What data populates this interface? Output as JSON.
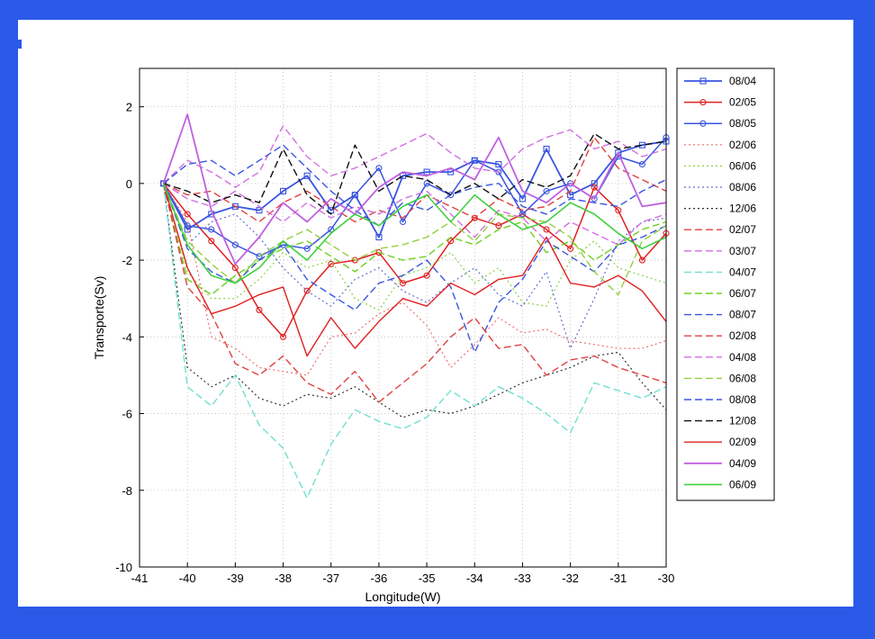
{
  "chart_data": {
    "type": "line",
    "xlabel": "Longitude(W)",
    "ylabel": "Transporte(Sv)",
    "xlim": [
      -41,
      -30
    ],
    "ylim": [
      -10,
      3
    ],
    "xticks": [
      -41,
      -40,
      -39,
      -38,
      -37,
      -36,
      -35,
      -34,
      -33,
      -32,
      -31,
      -30
    ],
    "yticks": [
      2,
      0,
      -2,
      -4,
      -6,
      -8,
      -10
    ],
    "grid": true,
    "legend_position": "right",
    "x": [
      -40.5,
      -40,
      -39.5,
      -39,
      -38.5,
      -38,
      -37.5,
      -37,
      -36.5,
      -36,
      -35.5,
      -35,
      -34.5,
      -34,
      -33.5,
      -33,
      -32.5,
      -32,
      -31.5,
      -31,
      -30.5,
      -30
    ],
    "series": [
      {
        "name": "08/04",
        "color": "#3a55e0",
        "dash": "",
        "marker": "square",
        "width": 1.8,
        "values": [
          0,
          -1.2,
          -0.8,
          -0.6,
          -0.7,
          -0.2,
          0.2,
          -0.7,
          -0.3,
          -1.4,
          0.2,
          0.3,
          0.3,
          0.6,
          0.5,
          -0.4,
          0.9,
          -0.3,
          0,
          0.8,
          1.0,
          1.1
        ]
      },
      {
        "name": "02/05",
        "color": "#e02020",
        "dash": "",
        "marker": "circle",
        "width": 1.5,
        "values": [
          0,
          -0.8,
          -1.5,
          -2.2,
          -3.3,
          -4.0,
          -2.8,
          -2.1,
          -2.0,
          -1.8,
          -2.6,
          -2.4,
          -1.5,
          -0.9,
          -1.1,
          -0.8,
          -1.2,
          -1.7,
          -0.1,
          -0.7,
          -2.0,
          -1.3
        ]
      },
      {
        "name": "08/05",
        "color": "#3a55e0",
        "dash": "",
        "marker": "circle",
        "width": 1.5,
        "values": [
          0,
          -1.1,
          -1.2,
          -1.6,
          -1.9,
          -1.6,
          -1.7,
          -1.2,
          -0.3,
          0.4,
          -1.0,
          0.0,
          -0.3,
          0.6,
          0.3,
          -0.8,
          -0.2,
          0.0,
          -0.4,
          0.7,
          0.5,
          1.2
        ]
      },
      {
        "name": "02/06",
        "color": "#f07070",
        "dash": "2,3",
        "marker": "",
        "width": 1.2,
        "values": [
          0,
          -1.0,
          -4.0,
          -4.3,
          -4.8,
          -4.9,
          -5.0,
          -4.0,
          -3.9,
          -3.4,
          -3.1,
          -3.7,
          -4.8,
          -4.2,
          -3.5,
          -3.9,
          -3.8,
          -4.1,
          -4.2,
          -4.3,
          -4.3,
          -4.1
        ]
      },
      {
        "name": "06/06",
        "color": "#88d040",
        "dash": "2,3",
        "marker": "",
        "width": 1.2,
        "values": [
          0,
          -2.3,
          -3.0,
          -3.0,
          -2.5,
          -1.8,
          -2.2,
          -2.0,
          -3.0,
          -3.3,
          -2.4,
          -2.2,
          -1.8,
          -2.6,
          -2.2,
          -3.1,
          -3.2,
          -2.0,
          -1.5,
          -2.2,
          -2.4,
          -2.6
        ]
      },
      {
        "name": "08/06",
        "color": "#6070d0",
        "dash": "2,3",
        "marker": "",
        "width": 1.2,
        "values": [
          0,
          -1.6,
          -1.0,
          -0.8,
          -1.4,
          -2.2,
          -2.8,
          -3.2,
          -2.5,
          -2.2,
          -2.8,
          -3.1,
          -2.6,
          -2.2,
          -2.9,
          -3.2,
          -2.3,
          -4.3,
          -3.0,
          -1.5,
          -1.0,
          -0.9
        ]
      },
      {
        "name": "12/06",
        "color": "#303030",
        "dash": "2,3",
        "marker": "",
        "width": 1.2,
        "values": [
          0,
          -4.8,
          -5.3,
          -5.0,
          -5.6,
          -5.8,
          -5.5,
          -5.6,
          -5.3,
          -5.7,
          -6.1,
          -5.9,
          -6.0,
          -5.8,
          -5.5,
          -5.2,
          -5.0,
          -4.8,
          -4.5,
          -4.4,
          -5.2,
          -5.9
        ]
      },
      {
        "name": "02/07",
        "color": "#e04040",
        "dash": "8,4",
        "marker": "",
        "width": 1.4,
        "values": [
          0,
          -0.3,
          -0.2,
          -0.6,
          -1.0,
          -0.5,
          -0.2,
          -0.6,
          -1.0,
          -0.7,
          -0.9,
          -0.3,
          -0.6,
          -0.9,
          -0.4,
          -0.7,
          -0.6,
          -0.2,
          1.2,
          0.4,
          0.1,
          -0.2
        ]
      },
      {
        "name": "03/07",
        "color": "#d070e0",
        "dash": "8,4",
        "marker": "",
        "width": 1.4,
        "values": [
          0,
          -0.4,
          -0.6,
          -0.2,
          -0.6,
          -1.0,
          -0.5,
          -0.9,
          -0.6,
          -0.8,
          -0.4,
          -0.2,
          -0.8,
          -1.4,
          -0.7,
          -0.9,
          -1.5,
          -1.0,
          -1.3,
          -1.6,
          -1.0,
          -0.8
        ]
      },
      {
        "name": "04/07",
        "color": "#70e0d0",
        "dash": "8,4",
        "marker": "",
        "width": 1.4,
        "values": [
          0,
          -5.3,
          -5.8,
          -5.0,
          -6.3,
          -6.9,
          -8.2,
          -6.8,
          -5.9,
          -6.2,
          -6.4,
          -6.1,
          -5.4,
          -5.8,
          -5.3,
          -5.6,
          -6.0,
          -6.5,
          -5.2,
          -5.4,
          -5.6,
          -5.3
        ]
      },
      {
        "name": "06/07",
        "color": "#70d020",
        "dash": "8,4",
        "marker": "",
        "width": 1.4,
        "values": [
          0,
          -2.5,
          -2.9,
          -2.4,
          -2.0,
          -1.7,
          -1.5,
          -1.9,
          -2.3,
          -1.8,
          -2.0,
          -1.9,
          -1.4,
          -1.6,
          -1.2,
          -1.0,
          -1.8,
          -1.5,
          -2.0,
          -1.6,
          -1.2,
          -1.0
        ]
      },
      {
        "name": "08/07",
        "color": "#3a55e0",
        "dash": "8,4",
        "marker": "",
        "width": 1.4,
        "values": [
          0,
          -1.7,
          -2.3,
          -2.6,
          -2.0,
          -1.6,
          -2.5,
          -2.9,
          -3.3,
          -2.6,
          -2.4,
          -2.0,
          -2.7,
          -4.4,
          -3.1,
          -2.5,
          -1.5,
          -1.9,
          -2.3,
          -1.6,
          -1.4,
          -1.1
        ]
      },
      {
        "name": "02/08",
        "color": "#e04040",
        "dash": "8,4",
        "marker": "",
        "width": 1.4,
        "values": [
          0,
          -2.7,
          -3.4,
          -4.7,
          -5.0,
          -4.5,
          -5.2,
          -5.5,
          -4.9,
          -5.7,
          -5.2,
          -4.7,
          -4.0,
          -3.5,
          -4.3,
          -4.2,
          -5.0,
          -4.6,
          -4.5,
          -4.8,
          -5.0,
          -5.2
        ]
      },
      {
        "name": "04/08",
        "color": "#d070e0",
        "dash": "8,4",
        "marker": "",
        "width": 1.4,
        "values": [
          0,
          0.6,
          0.3,
          -0.1,
          0.3,
          1.5,
          0.7,
          0.2,
          0.4,
          0.7,
          1.0,
          1.3,
          0.8,
          0.4,
          0.3,
          0.9,
          1.2,
          1.4,
          0.9,
          1.1,
          0.7,
          0.9
        ]
      },
      {
        "name": "06/08",
        "color": "#90d040",
        "dash": "8,4",
        "marker": "",
        "width": 1.4,
        "values": [
          0,
          -1.5,
          -2.1,
          -2.6,
          -1.9,
          -1.5,
          -1.2,
          -1.6,
          -2.0,
          -1.7,
          -1.6,
          -1.4,
          -1.0,
          -1.5,
          -0.8,
          -0.9,
          -1.0,
          -1.4,
          -2.3,
          -2.9,
          -1.5,
          -1.1
        ]
      },
      {
        "name": "08/08",
        "color": "#3a55e0",
        "dash": "8,4",
        "marker": "",
        "width": 1.4,
        "values": [
          0,
          0.5,
          0.6,
          0.2,
          0.6,
          1.0,
          0.4,
          -0.2,
          -0.7,
          -1.1,
          -0.5,
          -0.7,
          -0.3,
          -0.1,
          0.0,
          -0.6,
          -0.8,
          -0.4,
          -0.5,
          -0.6,
          -0.2,
          0.1
        ]
      },
      {
        "name": "12/08",
        "color": "#101010",
        "dash": "8,4",
        "marker": "",
        "width": 1.4,
        "values": [
          0,
          -0.2,
          -0.5,
          -0.3,
          -0.5,
          0.9,
          -0.3,
          -0.8,
          1.0,
          -0.2,
          0.2,
          0.1,
          -0.3,
          0.0,
          -0.4,
          0.1,
          -0.1,
          0.2,
          1.3,
          0.9,
          1.0,
          1.1
        ]
      },
      {
        "name": "02/09",
        "color": "#e02020",
        "dash": "",
        "marker": "",
        "width": 1.4,
        "values": [
          0,
          -2.2,
          -3.4,
          -3.2,
          -2.9,
          -2.7,
          -4.5,
          -3.5,
          -4.3,
          -3.6,
          -3.0,
          -3.2,
          -2.6,
          -2.9,
          -2.5,
          -2.4,
          -1.4,
          -2.6,
          -2.7,
          -2.4,
          -2.8,
          -3.6
        ]
      },
      {
        "name": "04/09",
        "color": "#c060e0",
        "dash": "",
        "marker": "",
        "width": 1.8,
        "values": [
          0,
          1.8,
          -0.7,
          -2.1,
          -1.4,
          -0.5,
          -1.0,
          -0.4,
          -0.8,
          -0.1,
          0.3,
          0.2,
          0.4,
          0.1,
          1.2,
          -0.2,
          -0.5,
          0.0,
          -0.4,
          0.8,
          -0.6,
          -0.5
        ]
      },
      {
        "name": "06/09",
        "color": "#40d040",
        "dash": "",
        "marker": "",
        "width": 1.6,
        "values": [
          0,
          -1.6,
          -2.4,
          -2.6,
          -2.2,
          -1.5,
          -2.0,
          -1.3,
          -0.8,
          -1.1,
          -0.6,
          -0.3,
          -1.0,
          -0.3,
          -0.8,
          -1.2,
          -1.0,
          -0.5,
          -0.8,
          -1.3,
          -1.7,
          -1.4
        ]
      }
    ]
  }
}
